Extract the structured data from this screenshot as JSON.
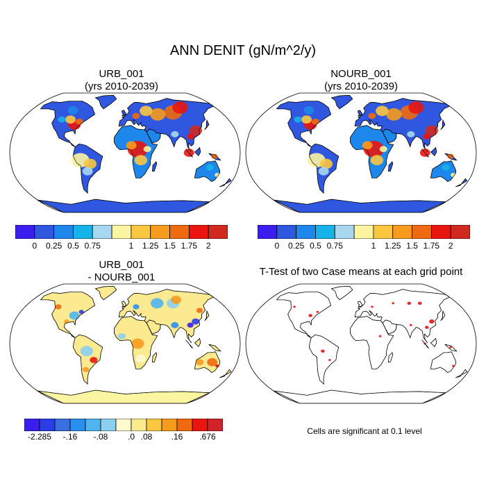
{
  "title": "ANN DENIT (gN/m^2/y)",
  "panels": [
    {
      "id": "urb",
      "title_line1": "URB_001",
      "title_line2": "(yrs 2010-2039)"
    },
    {
      "id": "nourb",
      "title_line1": "NOURB_001",
      "title_line2": "(yrs 2010-2039)"
    },
    {
      "id": "diff",
      "title_line1": "URB_001",
      "title_line2": "- NOURB_001"
    },
    {
      "id": "ttest",
      "title_line1": "T-Test of two Case means at each grid point",
      "title_line2": ""
    }
  ],
  "chart_data": [
    {
      "type": "heatmap",
      "title": "URB_001 (yrs 2010-2039)",
      "colorbar": {
        "colors": [
          "#3a1ef0",
          "#2f57e0",
          "#1e87eb",
          "#16b2ea",
          "#a8d8f0",
          "#fbf4a0",
          "#fbc640",
          "#f79b1e",
          "#f06a12",
          "#e8160e",
          "#d02a20"
        ],
        "tick_labels": [
          "0",
          "0.25",
          "0.5",
          "0.75",
          "1",
          "1.25",
          "1.5",
          "1.75",
          "2"
        ]
      }
    },
    {
      "type": "heatmap",
      "title": "NOURB_001 (yrs 2010-2039)",
      "colorbar": {
        "colors": [
          "#3a1ef0",
          "#2f57e0",
          "#1e87eb",
          "#16b2ea",
          "#a8d8f0",
          "#fbf4a0",
          "#fbc640",
          "#f79b1e",
          "#f06a12",
          "#e8160e",
          "#d02a20"
        ],
        "tick_labels": [
          "0",
          "0.25",
          "0.5",
          "0.75",
          "1",
          "1.25",
          "1.5",
          "1.75",
          "2"
        ]
      }
    },
    {
      "type": "heatmap",
      "title": "URB_001 - NOURB_001",
      "colorbar": {
        "colors": [
          "#3a1ef0",
          "#2a3ee8",
          "#3b6fe0",
          "#2a90f0",
          "#50b4f0",
          "#8ccff0",
          "#fffbd0",
          "#fbea90",
          "#fbc640",
          "#f79b1e",
          "#f06a12",
          "#e8160e",
          "#d0242a"
        ],
        "tick_labels": [
          "-2.285",
          "-.16",
          "-.08",
          ".0",
          ".08",
          ".16",
          ".676"
        ]
      }
    },
    {
      "type": "heatmap",
      "title": "T-Test of two Case means at each grid point",
      "note": "Cells are significant at 0.1 level",
      "colors": {
        "significant": "#e8120e"
      }
    }
  ],
  "colors": {
    "ocean": "#ffffff",
    "coast": "#000000",
    "antarctica_abs": "#2f57e0",
    "antarctica_diff": "#fbf4a0"
  }
}
